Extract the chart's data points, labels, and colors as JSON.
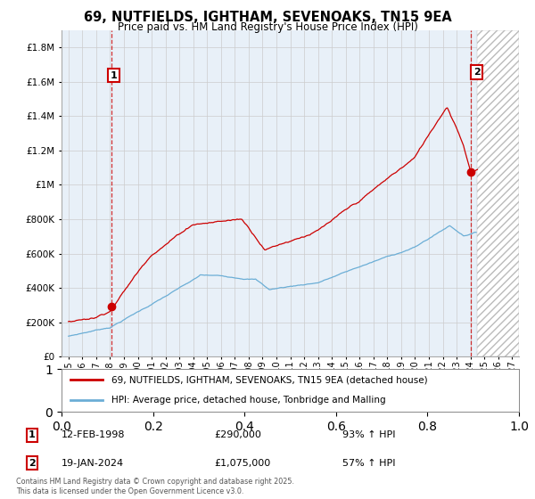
{
  "title": "69, NUTFIELDS, IGHTHAM, SEVENOAKS, TN15 9EA",
  "subtitle": "Price paid vs. HM Land Registry's House Price Index (HPI)",
  "legend_label1": "69, NUTFIELDS, IGHTHAM, SEVENOAKS, TN15 9EA (detached house)",
  "legend_label2": "HPI: Average price, detached house, Tonbridge and Malling",
  "marker1_date": "12-FEB-1998",
  "marker1_price": 290000,
  "marker1_hpi": "93% ↑ HPI",
  "marker2_date": "19-JAN-2024",
  "marker2_price": 1075000,
  "marker2_hpi": "57% ↑ HPI",
  "line1_color": "#cc0000",
  "line2_color": "#6baed6",
  "marker_color": "#cc0000",
  "dashed_line_color": "#cc0000",
  "grid_color": "#cccccc",
  "bg_color": "#ffffff",
  "plot_bg_color": "#e8f0f8",
  "ylim": [
    0,
    1900000
  ],
  "yticks": [
    0,
    200000,
    400000,
    600000,
    800000,
    1000000,
    1200000,
    1400000,
    1600000,
    1800000
  ],
  "footer": "Contains HM Land Registry data © Crown copyright and database right 2025.\nThis data is licensed under the Open Government Licence v3.0.",
  "point1_year": 1998.12,
  "point1_value": 290000,
  "point2_year": 2024.05,
  "point2_value": 1075000
}
